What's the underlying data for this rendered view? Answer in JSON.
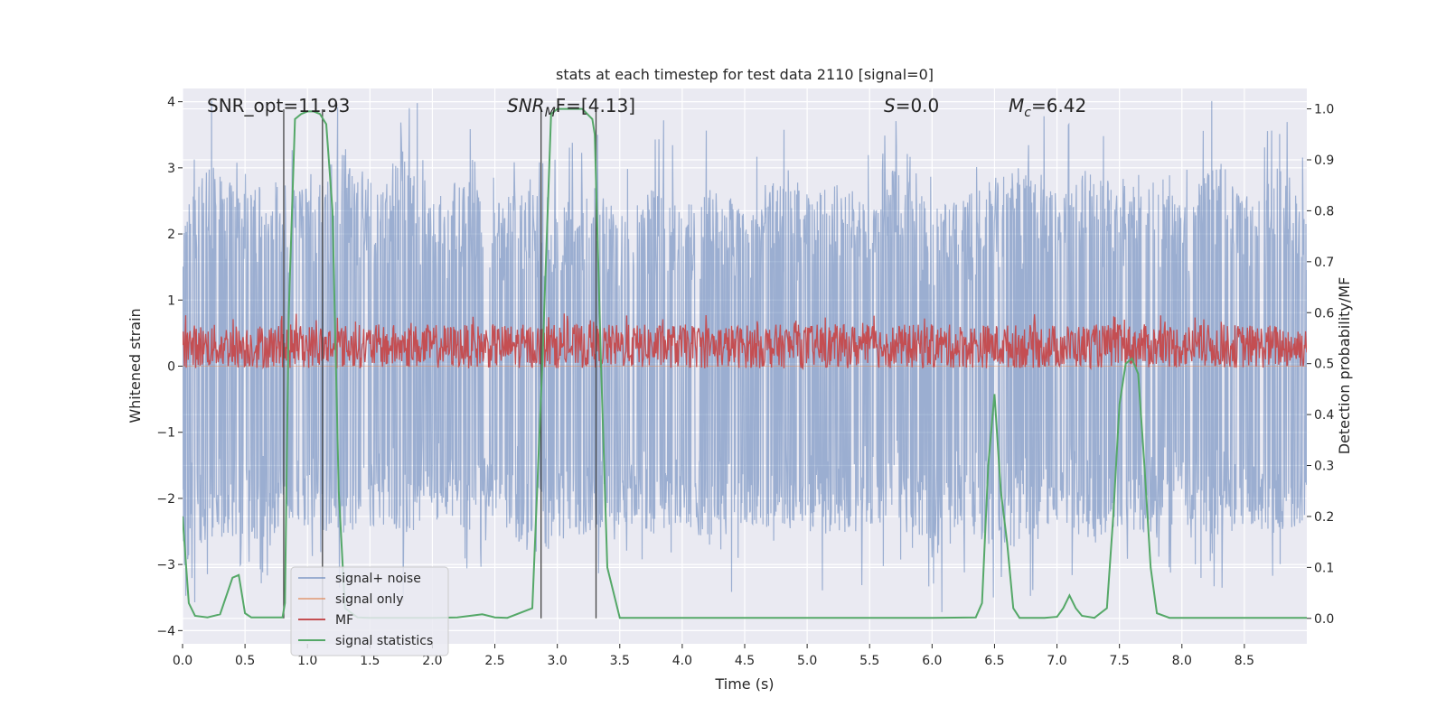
{
  "chart_data": {
    "type": "line",
    "title": "stats at each timestep for test data 2110 [signal=0]",
    "xlabel": "Time (s)",
    "ylabel_left": "Whitened strain",
    "ylabel_right": "Detection probability/MF",
    "xlim": [
      0.0,
      9.0
    ],
    "ylim_left": [
      -4.2,
      4.2
    ],
    "ylim_right": [
      -0.05,
      1.04
    ],
    "x_ticks": [
      0.0,
      0.5,
      1.0,
      1.5,
      2.0,
      2.5,
      3.0,
      3.5,
      4.0,
      4.5,
      5.0,
      5.5,
      6.0,
      6.5,
      7.0,
      7.5,
      8.0,
      8.5
    ],
    "x_tick_labels": [
      "0.0",
      "0.5",
      "1.0",
      "1.5",
      "2.0",
      "2.5",
      "3.0",
      "3.5",
      "4.0",
      "4.5",
      "5.0",
      "5.5",
      "6.0",
      "6.5",
      "7.0",
      "7.5",
      "8.0",
      "8.5"
    ],
    "y_left_ticks": [
      -4,
      -3,
      -2,
      -1,
      0,
      1,
      2,
      3,
      4
    ],
    "y_left_tick_labels": [
      "−4",
      "−3",
      "−2",
      "−1",
      "0",
      "1",
      "2",
      "3",
      "4"
    ],
    "y_right_ticks": [
      0.0,
      0.1,
      0.2,
      0.3,
      0.4,
      0.5,
      0.6,
      0.7,
      0.8,
      0.9,
      1.0
    ],
    "y_right_tick_labels": [
      "0.0",
      "0.1",
      "0.2",
      "0.3",
      "0.4",
      "0.5",
      "0.6",
      "0.7",
      "0.8",
      "0.9",
      "1.0"
    ],
    "grid": true,
    "legend_position": "lower-left",
    "annotations": {
      "snr_opt": "SNR_opt=11.93",
      "snr_mf_main": "SNR",
      "snr_mf_sub": "M",
      "snr_mf_rest": "F=[4.13]",
      "s_main": "S",
      "s_rest": "=0.0",
      "mc_main": "M",
      "mc_sub": "c",
      "mc_rest": "=6.42"
    },
    "vertical_lines": [
      0.81,
      1.12,
      2.87,
      3.31
    ],
    "series": [
      {
        "name": "signal+ noise",
        "color": "#4c72b0",
        "axis": "left",
        "envelope_upper": [
          [
            0.0,
            2.4
          ],
          [
            0.2,
            3.1
          ],
          [
            0.5,
            2.6
          ],
          [
            0.8,
            2.9
          ],
          [
            1.0,
            2.7
          ],
          [
            1.3,
            3.3
          ],
          [
            1.6,
            2.6
          ],
          [
            1.75,
            3.5
          ],
          [
            2.0,
            2.6
          ],
          [
            2.3,
            2.9
          ],
          [
            2.5,
            2.5
          ],
          [
            2.8,
            2.9
          ],
          [
            3.0,
            2.4
          ],
          [
            3.3,
            2.7
          ],
          [
            3.5,
            2.3
          ],
          [
            3.8,
            2.9
          ],
          [
            4.0,
            2.4
          ],
          [
            4.3,
            2.8
          ],
          [
            4.5,
            2.3
          ],
          [
            4.8,
            3.1
          ],
          [
            5.0,
            2.6
          ],
          [
            5.3,
            2.8
          ],
          [
            5.5,
            2.4
          ],
          [
            5.8,
            3.3
          ],
          [
            6.0,
            2.4
          ],
          [
            6.3,
            2.6
          ],
          [
            6.5,
            2.9
          ],
          [
            6.8,
            3.1
          ],
          [
            7.0,
            2.6
          ],
          [
            7.3,
            3.1
          ],
          [
            7.5,
            2.8
          ],
          [
            7.8,
            3.2
          ],
          [
            8.0,
            2.6
          ],
          [
            8.3,
            3.1
          ],
          [
            8.5,
            2.6
          ],
          [
            8.8,
            3.1
          ],
          [
            9.0,
            2.4
          ]
        ],
        "envelope_lower": [
          [
            0.0,
            -3.2
          ],
          [
            0.2,
            -2.6
          ],
          [
            0.5,
            -2.7
          ],
          [
            0.8,
            -2.5
          ],
          [
            1.0,
            -2.4
          ],
          [
            1.3,
            -2.6
          ],
          [
            1.6,
            -2.4
          ],
          [
            1.75,
            -2.7
          ],
          [
            2.0,
            -2.3
          ],
          [
            2.3,
            -2.5
          ],
          [
            2.5,
            -2.3
          ],
          [
            2.8,
            -2.9
          ],
          [
            3.0,
            -2.7
          ],
          [
            3.3,
            -2.5
          ],
          [
            3.5,
            -2.4
          ],
          [
            3.8,
            -2.6
          ],
          [
            4.0,
            -2.5
          ],
          [
            4.3,
            -2.8
          ],
          [
            4.5,
            -2.4
          ],
          [
            4.8,
            -2.5
          ],
          [
            5.0,
            -2.5
          ],
          [
            5.3,
            -2.6
          ],
          [
            5.5,
            -2.4
          ],
          [
            5.8,
            -2.3
          ],
          [
            6.0,
            -2.9
          ],
          [
            6.3,
            -2.5
          ],
          [
            6.5,
            -2.8
          ],
          [
            6.8,
            -2.7
          ],
          [
            7.0,
            -2.4
          ],
          [
            7.3,
            -2.7
          ],
          [
            7.5,
            -2.4
          ],
          [
            7.8,
            -2.6
          ],
          [
            8.0,
            -2.4
          ],
          [
            8.3,
            -2.6
          ],
          [
            8.5,
            -2.4
          ],
          [
            8.8,
            -2.6
          ],
          [
            9.0,
            -2.3
          ]
        ]
      },
      {
        "name": "signal only",
        "color": "#dd8452",
        "axis": "left",
        "values_constant": 0
      },
      {
        "name": "MF",
        "color": "#c44e52",
        "axis": "left",
        "band_center": 0.3,
        "band_upper": 0.65,
        "band_lower": -0.05
      },
      {
        "name": "signal statistics",
        "color": "#55a868",
        "axis": "right",
        "x": [
          0.0,
          0.05,
          0.1,
          0.2,
          0.3,
          0.4,
          0.45,
          0.5,
          0.55,
          0.6,
          0.7,
          0.8,
          0.82,
          0.85,
          0.9,
          0.95,
          1.0,
          1.05,
          1.1,
          1.15,
          1.2,
          1.25,
          1.3,
          1.4,
          1.5,
          1.8,
          2.0,
          2.2,
          2.3,
          2.4,
          2.5,
          2.6,
          2.8,
          2.88,
          2.95,
          3.0,
          3.1,
          3.2,
          3.28,
          3.3,
          3.35,
          3.4,
          3.5,
          4.0,
          5.0,
          6.0,
          6.35,
          6.4,
          6.45,
          6.5,
          6.55,
          6.6,
          6.65,
          6.7,
          6.9,
          7.0,
          7.05,
          7.1,
          7.15,
          7.2,
          7.3,
          7.4,
          7.45,
          7.5,
          7.55,
          7.6,
          7.65,
          7.7,
          7.75,
          7.8,
          7.9,
          8.0,
          8.5,
          9.0
        ],
        "y": [
          0.2,
          0.03,
          0.005,
          0.002,
          0.008,
          0.08,
          0.085,
          0.01,
          0.002,
          0.002,
          0.002,
          0.002,
          0.03,
          0.6,
          0.98,
          0.99,
          0.995,
          0.995,
          0.99,
          0.97,
          0.8,
          0.25,
          0.02,
          0.002,
          0.001,
          0.001,
          0.001,
          0.002,
          0.005,
          0.008,
          0.002,
          0.001,
          0.02,
          0.5,
          0.99,
          1.0,
          1.0,
          1.0,
          0.98,
          0.95,
          0.5,
          0.1,
          0.001,
          0.001,
          0.001,
          0.001,
          0.002,
          0.03,
          0.3,
          0.44,
          0.25,
          0.15,
          0.02,
          0.001,
          0.001,
          0.003,
          0.02,
          0.045,
          0.02,
          0.005,
          0.001,
          0.02,
          0.2,
          0.42,
          0.5,
          0.51,
          0.48,
          0.3,
          0.1,
          0.01,
          0.001,
          0.001,
          0.001,
          0.001
        ]
      }
    ]
  }
}
